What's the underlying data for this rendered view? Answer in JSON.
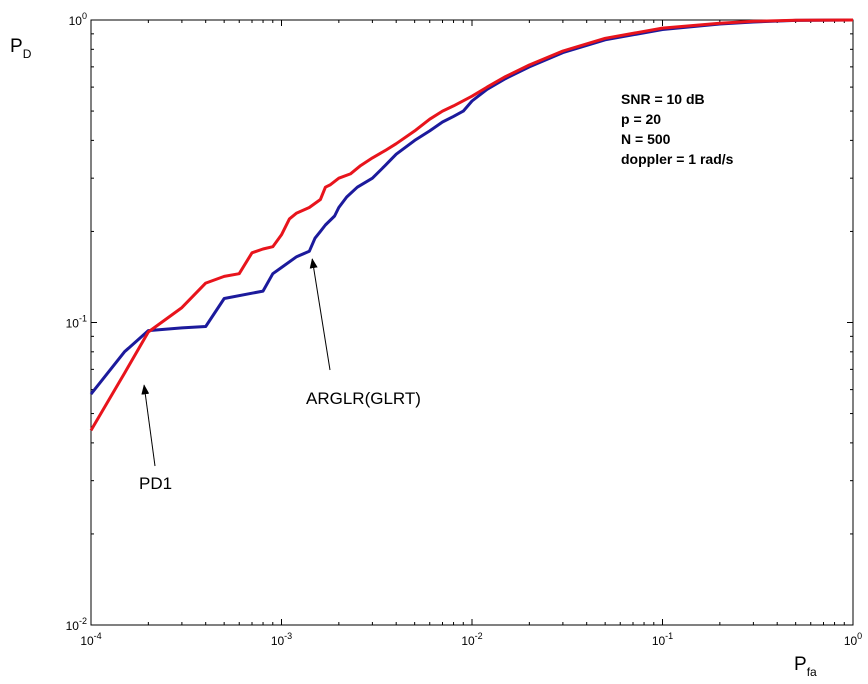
{
  "chart_data": {
    "type": "line",
    "title": "",
    "xlabel": "P",
    "xlabel_sub": "fa",
    "ylabel": "P",
    "ylabel_sub": "D",
    "xscale": "log",
    "yscale": "log",
    "xlim": [
      0.0001,
      1
    ],
    "ylim": [
      0.01,
      1
    ],
    "grid": false,
    "x_ticks": [
      {
        "base": "10",
        "exp": "-4"
      },
      {
        "base": "10",
        "exp": "-3"
      },
      {
        "base": "10",
        "exp": "-2"
      },
      {
        "base": "10",
        "exp": "-1"
      },
      {
        "base": "10",
        "exp": "0"
      }
    ],
    "y_ticks": [
      {
        "base": "10",
        "exp": "-2"
      },
      {
        "base": "10",
        "exp": "-1"
      },
      {
        "base": "10",
        "exp": "0"
      }
    ],
    "series": [
      {
        "name": "PD1",
        "color": "#e8141c",
        "x": [
          0.0001,
          0.00015,
          0.0002,
          0.0003,
          0.0004,
          0.0005,
          0.0006,
          0.0007,
          0.0008,
          0.0009,
          0.001,
          0.0011,
          0.0012,
          0.0014,
          0.0016,
          0.0017,
          0.0018,
          0.002,
          0.0023,
          0.0026,
          0.003,
          0.0035,
          0.004,
          0.005,
          0.006,
          0.007,
          0.008,
          0.01,
          0.012,
          0.015,
          0.02,
          0.03,
          0.05,
          0.1,
          0.2,
          0.3,
          0.5,
          1
        ],
        "y": [
          0.044,
          0.068,
          0.093,
          0.112,
          0.135,
          0.142,
          0.145,
          0.17,
          0.175,
          0.178,
          0.195,
          0.22,
          0.23,
          0.24,
          0.255,
          0.28,
          0.285,
          0.3,
          0.31,
          0.33,
          0.35,
          0.37,
          0.39,
          0.43,
          0.47,
          0.5,
          0.52,
          0.56,
          0.6,
          0.65,
          0.71,
          0.79,
          0.87,
          0.94,
          0.975,
          0.99,
          0.998,
          1.0
        ]
      },
      {
        "name": "ARGLR(GLRT)",
        "color": "#1c1a9c",
        "x": [
          0.0001,
          0.00015,
          0.0002,
          0.0003,
          0.0004,
          0.0005,
          0.0007,
          0.0008,
          0.0009,
          0.001,
          0.0012,
          0.0014,
          0.0015,
          0.0016,
          0.0017,
          0.0019,
          0.002,
          0.0022,
          0.0025,
          0.003,
          0.0035,
          0.004,
          0.005,
          0.006,
          0.007,
          0.008,
          0.009,
          0.01,
          0.012,
          0.015,
          0.02,
          0.03,
          0.05,
          0.1,
          0.2,
          0.3,
          0.5,
          1
        ],
        "y": [
          0.058,
          0.08,
          0.094,
          0.096,
          0.097,
          0.12,
          0.125,
          0.127,
          0.145,
          0.152,
          0.165,
          0.172,
          0.19,
          0.2,
          0.21,
          0.225,
          0.24,
          0.26,
          0.28,
          0.3,
          0.33,
          0.36,
          0.4,
          0.43,
          0.46,
          0.48,
          0.5,
          0.54,
          0.59,
          0.64,
          0.7,
          0.78,
          0.86,
          0.93,
          0.97,
          0.985,
          0.997,
          1.0
        ]
      }
    ],
    "annotations": [
      {
        "text": "PD1",
        "points_to_series": "PD1"
      },
      {
        "text": "ARGLR(GLRT)",
        "points_to_series": "ARGLR(GLRT)"
      }
    ],
    "info_lines": [
      "SNR = 10 dB",
      "p = 20",
      "N = 500",
      "doppler = 1 rad/s"
    ]
  }
}
